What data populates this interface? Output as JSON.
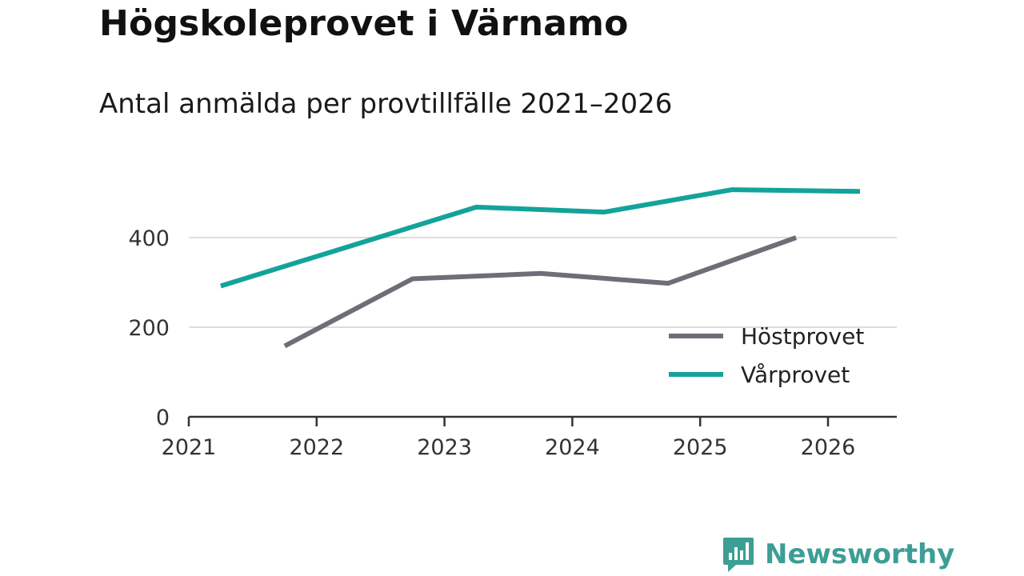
{
  "title": "Högskoleprovet i Värnamo",
  "subtitle": "Antal anmälda per provtillfälle 2021–2026",
  "brand": "Newsworthy",
  "colors": {
    "Höstprovet": "#6e6e78",
    "Vårprovet": "#13a39a",
    "grid": "#dddddd",
    "axis": "#333333",
    "brand": "#3d9e95"
  },
  "chart_data": {
    "type": "line",
    "title": "Högskoleprovet i Värnamo",
    "subtitle": "Antal anmälda per provtillfälle 2021–2026",
    "xlabel": "",
    "ylabel": "",
    "xlim": [
      2021,
      2026.55
    ],
    "ylim": [
      0,
      450
    ],
    "x_ticks": [
      2021,
      2022,
      2023,
      2024,
      2025,
      2026
    ],
    "y_ticks": [
      0,
      200,
      400
    ],
    "grid": true,
    "legend_position": "bottom-right",
    "series": [
      {
        "name": "Höstprovet",
        "x": [
          2021.75,
          2022.75,
          2023.75,
          2024.75,
          2025.75
        ],
        "values": [
          158,
          308,
          320,
          298,
          400
        ]
      },
      {
        "name": "Vårprovet",
        "x": [
          2021.25,
          2022.25,
          2023.25,
          2024.25,
          2025.25,
          2026.25
        ],
        "values": [
          292,
          380,
          468,
          457,
          507,
          503
        ]
      }
    ]
  }
}
